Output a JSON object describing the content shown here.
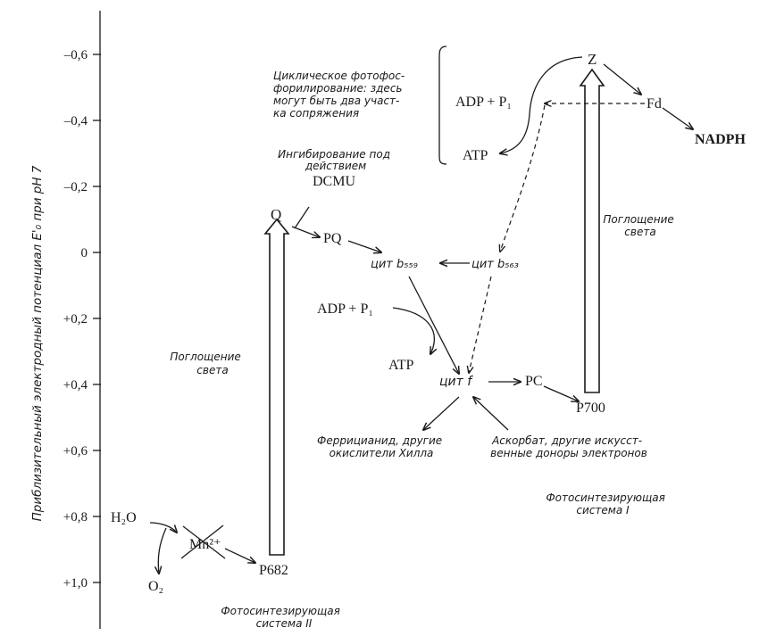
{
  "axis": {
    "label": "Приблизительный электродный потенциал E'₀ при pH 7",
    "ticks": [
      "–0,6",
      "–0,4",
      "–0,2",
      "0",
      "+0,2",
      "+0,4",
      "+0,6",
      "+0,8",
      "+1,0"
    ]
  },
  "species": {
    "h2o": "H₂O",
    "o2": "O₂",
    "mn": "Mn²⁺",
    "p682": "P682",
    "q": "Q",
    "pq": "PQ",
    "cyt_b559": "цит b₅₅₉",
    "cyt_b563": "цит b₅₆₃",
    "cyt_f": "цит f",
    "pc": "PC",
    "p700": "P700",
    "z": "Z",
    "fd": "Fd",
    "nadph": "NADPH",
    "adp1": "ADP + P₁",
    "atp1": "ATP",
    "adp2": "ADP + P₁",
    "atp2": "ATP",
    "dcmu": "DCMU"
  },
  "notes": {
    "light_ps2": [
      "Поглощение",
      "света"
    ],
    "light_ps1": [
      "Поглощение",
      "света"
    ],
    "ps2": [
      "Фотосинтезирующая",
      "система II"
    ],
    "ps1": [
      "Фотосинтезирующая",
      "система I"
    ],
    "cyclic": [
      "Циклическое фотофос-",
      "форилирование: здесь",
      "могут быть два участ-",
      "ка сопряжения"
    ],
    "dcmu_inhib": [
      "Ингибирование под",
      "действием"
    ],
    "hill": [
      "Феррицианид, другие",
      "окислители Хилла"
    ],
    "donors": [
      "Аскорбат, другие искусст-",
      "венные доноры электронов"
    ]
  }
}
